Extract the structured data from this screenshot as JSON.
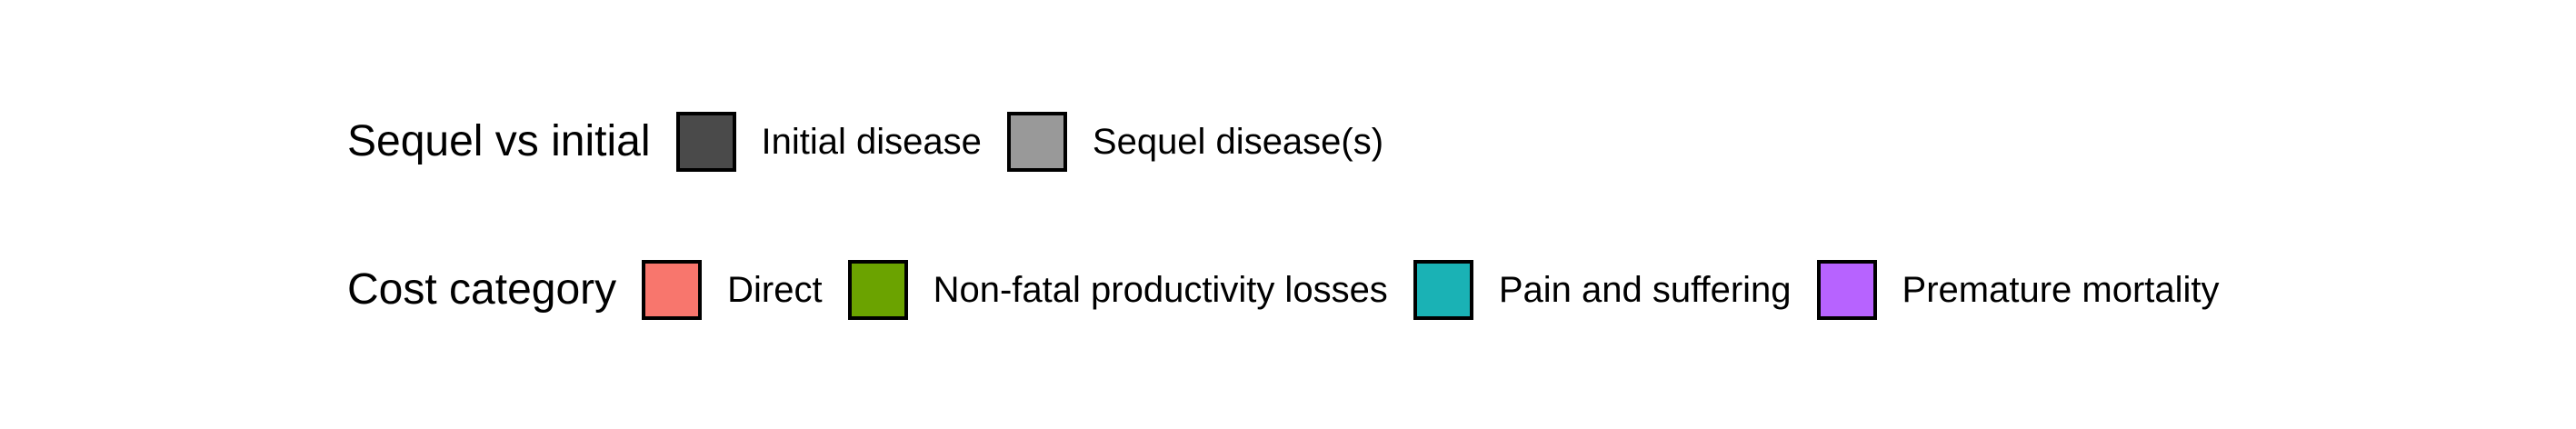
{
  "legends": [
    {
      "title": "Sequel vs initial",
      "items": [
        {
          "label": "Initial disease",
          "color": "#4a4a4a"
        },
        {
          "label": "Sequel disease(s)",
          "color": "#999999"
        }
      ]
    },
    {
      "title": "Cost category",
      "items": [
        {
          "label": "Direct",
          "color": "#f8766d"
        },
        {
          "label": "Non-fatal productivity losses",
          "color": "#6ba300"
        },
        {
          "label": "Pain and suffering",
          "color": "#1ab2b5"
        },
        {
          "label": "Premature mortality",
          "color": "#b763ff"
        }
      ]
    }
  ],
  "chart_data": {
    "type": "legend",
    "series": [
      {
        "name": "Initial disease",
        "values": []
      },
      {
        "name": "Sequel disease(s)",
        "values": []
      },
      {
        "name": "Direct",
        "values": []
      },
      {
        "name": "Non-fatal productivity losses",
        "values": []
      },
      {
        "name": "Pain and suffering",
        "values": []
      },
      {
        "name": "Premature mortality",
        "values": []
      }
    ]
  }
}
